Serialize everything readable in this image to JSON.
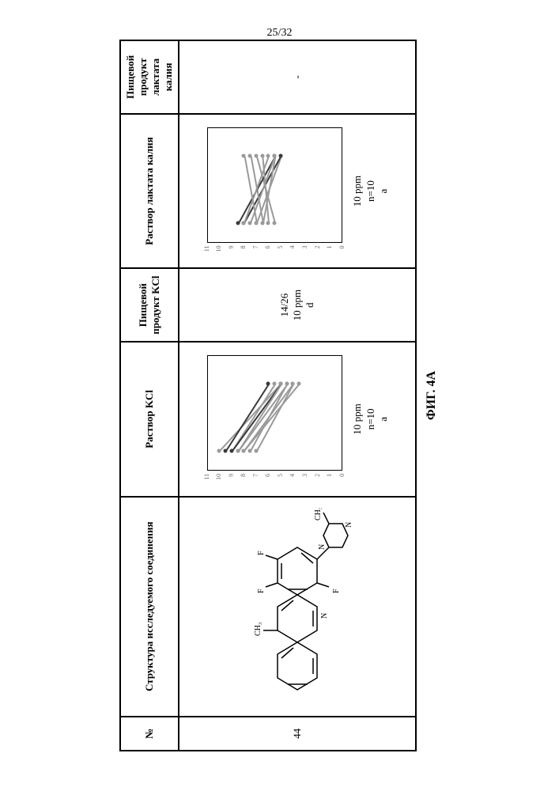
{
  "page_number": "25/32",
  "figure_label": "ФИГ. 4A",
  "headers": {
    "num": "№",
    "structure": "Структура исследуемого соединения",
    "kcl_sol": "Раствор KCl",
    "kcl_food": "Пищевой продукт KCl",
    "lact_sol": "Раствор лактата калия",
    "lact_food": "Пищевой продукт лактата калия"
  },
  "row": {
    "num": "44",
    "kcl_food": {
      "line1": "14/26",
      "line2": "10 ppm",
      "line3": "d"
    },
    "lact_food": "-",
    "kcl_sol_caption": {
      "line1": "10 ppm",
      "line2": "n=10",
      "line3": "a"
    },
    "lact_sol_caption": {
      "line1": "10 ppm",
      "line2": "n=10",
      "line3": "a"
    }
  },
  "chart": {
    "bg": "#ffffff",
    "axis_color": "#000000",
    "tick_font_color": "#666666",
    "light": "#9a9a9a",
    "dark": "#3a3a3a",
    "yticks": [
      0,
      1,
      2,
      3,
      4,
      5,
      6,
      7,
      8,
      9,
      10,
      11
    ],
    "xL": 45,
    "xR": 130,
    "kcl_lines": [
      {
        "y0": 9,
        "y1": 5.5,
        "c": "light"
      },
      {
        "y0": 8,
        "y1": 4,
        "c": "light"
      },
      {
        "y0": 8.5,
        "y1": 4.5,
        "c": "light"
      },
      {
        "y0": 7,
        "y1": 4,
        "c": "light"
      },
      {
        "y0": 10,
        "y1": 5,
        "c": "light"
      },
      {
        "y0": 9,
        "y1": 5,
        "c": "dark"
      },
      {
        "y0": 8,
        "y1": 3.5,
        "c": "light"
      },
      {
        "y0": 7.5,
        "y1": 4.5,
        "c": "light"
      },
      {
        "y0": 9.5,
        "y1": 6,
        "c": "dark"
      },
      {
        "y0": 8.5,
        "y1": 5,
        "c": "light"
      }
    ],
    "lact_lines": [
      {
        "y0": 7,
        "y1": 5,
        "c": "light"
      },
      {
        "y0": 5.5,
        "y1": 7,
        "c": "light"
      },
      {
        "y0": 8,
        "y1": 5,
        "c": "dark"
      },
      {
        "y0": 6.5,
        "y1": 7.5,
        "c": "light"
      },
      {
        "y0": 8.5,
        "y1": 5.5,
        "c": "dark"
      },
      {
        "y0": 6,
        "y1": 6.5,
        "c": "light"
      },
      {
        "y0": 7,
        "y1": 8,
        "c": "light"
      },
      {
        "y0": 7.5,
        "y1": 5.5,
        "c": "light"
      },
      {
        "y0": 8,
        "y1": 6,
        "c": "light"
      },
      {
        "y0": 6.5,
        "y1": 5.5,
        "c": "light"
      }
    ]
  },
  "chem_labels": {
    "ch3a": "CH₃",
    "ch3b": "CH₃",
    "f": "F",
    "n": "N"
  }
}
